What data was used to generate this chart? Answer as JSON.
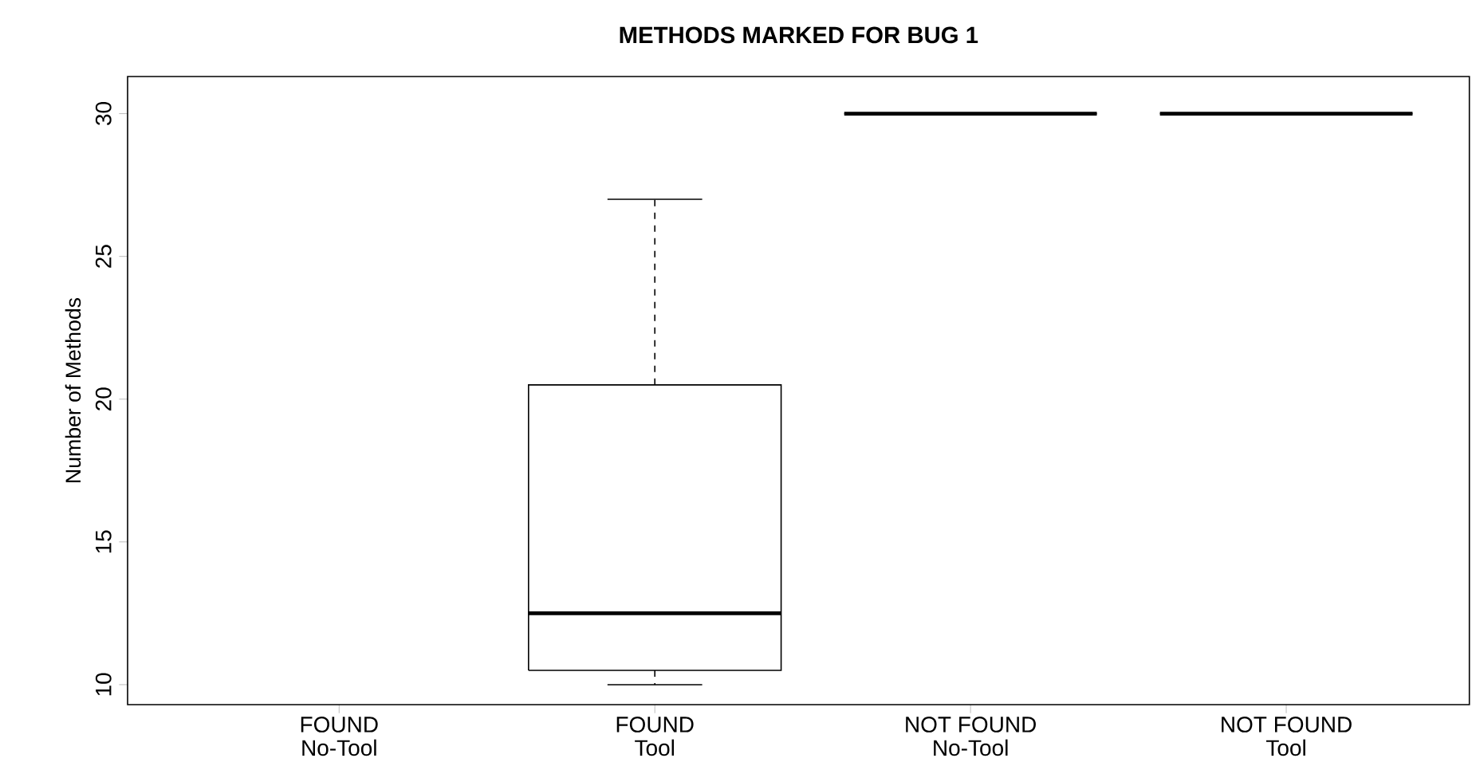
{
  "chart_data": {
    "type": "box",
    "title": "METHODS MARKED FOR BUG 1",
    "ylabel": "Number of Methods",
    "categories": [
      "FOUND\nNo-Tool",
      "FOUND\nTool",
      "NOT FOUND\nNo-Tool",
      "NOT FOUND\nTool"
    ],
    "boxes": [
      null,
      {
        "low": 10,
        "q1": 10.5,
        "median": 12.5,
        "q3": 20.5,
        "high": 27
      },
      {
        "low": 30,
        "q1": 30,
        "median": 30,
        "q3": 30,
        "high": 30
      },
      {
        "low": 30,
        "q1": 30,
        "median": 30,
        "q3": 30,
        "high": 30
      }
    ],
    "ylim": [
      9.3,
      31.3
    ],
    "yticks": [
      10,
      15,
      20,
      25,
      30
    ]
  }
}
